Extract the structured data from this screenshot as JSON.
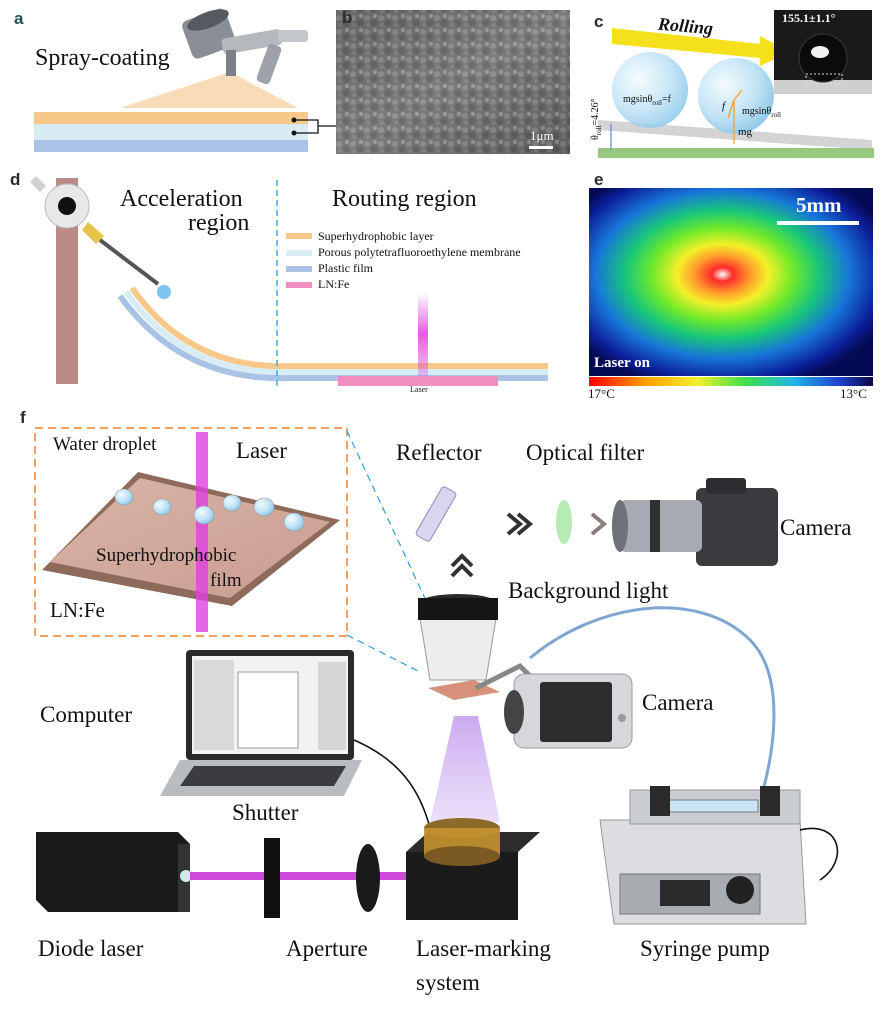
{
  "panels": {
    "a": {
      "letter": "a",
      "title": "Spray-coating"
    },
    "b": {
      "letter": "b",
      "scale_bar": "1μm"
    },
    "c": {
      "letter": "c",
      "title": "Rolling",
      "contact_angle": "155.1±1.1°",
      "force_left": "mgsinθ",
      "force_left_sub": "roll",
      "force_left_suffix": "=f",
      "force_f": "f",
      "force_right": "mgsinθ",
      "force_right_sub": "roll",
      "force_mg": "mg",
      "tilt_symbol": "θ",
      "tilt_sub": "roll",
      "tilt_value": "4.26°"
    },
    "d": {
      "letter": "d",
      "acceleration_line1": "Acceleration",
      "acceleration_line2": "region",
      "routing": "Routing region",
      "legend": [
        {
          "label": "Superhydrophobic layer",
          "color": "#f6c98a"
        },
        {
          "label": "Porous polytetrafluoroethylene membrane",
          "color": "#d7ecf3"
        },
        {
          "label": "Plastic film",
          "color": "#a9c2e6"
        },
        {
          "label": "LN:Fe",
          "color": "#ee8fbf"
        }
      ],
      "laser_label": "Laser"
    },
    "e": {
      "letter": "e",
      "scale_bar": "5mm",
      "status": "Laser on",
      "temp_hot": "17°C",
      "temp_cold": "13°C"
    },
    "f": {
      "letter": "f",
      "inset": {
        "water_droplet": "Water droplet",
        "laser": "Laser",
        "film_line1": "Superhydrophobic",
        "film_line2": "film",
        "substrate": "LN:Fe"
      },
      "reflector": "Reflector",
      "optical_filter": "Optical filter",
      "camera_top": "Camera",
      "background_light": "Background light",
      "computer": "Computer",
      "camera_mid": "Camera",
      "shutter": "Shutter",
      "diode_laser": "Diode laser",
      "aperture": "Aperture",
      "laser_marking_line1": "Laser-marking",
      "laser_marking_line2": "system",
      "syringe_pump": "Syringe pump"
    }
  },
  "colors": {
    "superhydrophobic": "#f6c98a",
    "membrane": "#d7ecf3",
    "plastic": "#a9c2e6",
    "lnfe": "#ee8fbf",
    "laser_beam": "#e040e0",
    "dashed_inset": "#f0a060",
    "guide_line": "#2b9fd6"
  }
}
